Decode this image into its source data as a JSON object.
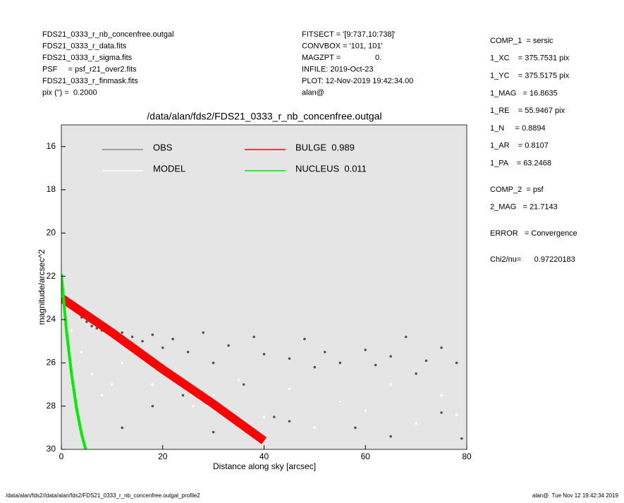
{
  "header": {
    "left": [
      "FDS21_0333_r_nb_concenfree.outgal",
      "FDS21_0333_r_data.fits",
      "FDS21_0333_r_sigma.fits",
      "PSF     = psf_r21_over2.fits",
      "FDS21_0333_r_finmask.fits",
      "pix (\") =  0.2000"
    ],
    "middle": [
      "FITSECT = '[9:737,10:738]'",
      "CONVBOX = '101, 101'",
      "MAGZPT =                0.",
      "INFILE: 2019-Oct-23",
      "PLOT: 12-Nov-2019 19:42:34.00",
      "alan@"
    ]
  },
  "fit_params": [
    [
      "COMP_1  = sersic",
      "1_XC    = 375.7531 pix",
      "1_YC    = 375.5175 pix",
      "1_MAG   = 16.8635",
      "1_RE    = 55.9467 pix",
      "1_N     = 0.8894",
      "1_AR    = 0.8107",
      "1_PA    = 63.2468"
    ],
    [
      "COMP_2  = psf",
      "2_MAG   = 21.7143"
    ],
    [
      "ERROR   = Convergence"
    ],
    [
      "Chi2/nu=      0.97220183"
    ]
  ],
  "footer": {
    "left": "/data/alan/fds2//data/alan/fds2/FDS21_0333_r_nb_concenfree.outgal_profile2",
    "right": "alan@  Tue Nov 12 19:42:34 2019"
  },
  "chart_data": {
    "type": "scatter",
    "title": "/data/alan/fds2/FDS21_0333_r_nb_concenfree.outgal",
    "x_label": "Distance along sky [arcsec]",
    "y_label": "magnitude/arcsec^2",
    "xlim": [
      0,
      80
    ],
    "xticks": [
      0,
      20,
      40,
      60,
      80
    ],
    "ylim": [
      30,
      15
    ],
    "yticks": [
      16,
      18,
      20,
      22,
      24,
      26,
      28,
      30
    ],
    "background": "#e5e5e5",
    "series": [
      {
        "name": "OBS",
        "color": "#555555",
        "label_color": "#999999",
        "mode": "markers",
        "x": [
          1,
          2,
          3,
          4,
          5,
          6,
          7,
          8,
          9,
          10,
          12,
          14,
          16,
          18,
          20,
          22,
          25,
          28,
          30,
          33,
          36,
          38,
          40,
          42,
          45,
          48,
          50,
          52,
          55,
          58,
          60,
          62,
          65,
          68,
          70,
          72,
          75,
          78,
          79,
          12,
          18,
          24,
          30,
          45,
          55,
          65,
          75
        ],
        "values": [
          23.0,
          23.3,
          23.6,
          23.9,
          24.1,
          24.3,
          24.4,
          24.5,
          24.6,
          24.7,
          24.6,
          24.8,
          25.0,
          24.7,
          25.3,
          24.9,
          25.5,
          24.6,
          26.0,
          25.2,
          27.0,
          24.8,
          25.6,
          28.5,
          25.8,
          24.9,
          26.2,
          25.5,
          26.0,
          29.0,
          25.4,
          26.1,
          25.7,
          24.8,
          26.5,
          25.9,
          25.3,
          26.0,
          29.5,
          29.0,
          28.0,
          27.5,
          29.2,
          28.7,
          27.8,
          29.4,
          28.3
        ]
      },
      {
        "name": "MODEL",
        "color": "#ffffff",
        "label_color": "#ffffff",
        "mode": "markers",
        "x": [
          0.5,
          1,
          2,
          4,
          6,
          8,
          10,
          12,
          15,
          18,
          22,
          26,
          30,
          35,
          40,
          45,
          50,
          55,
          60,
          65,
          70,
          75,
          78
        ],
        "values": [
          22.5,
          23.5,
          24.5,
          25.5,
          26.5,
          27.5,
          27.0,
          26.0,
          25.5,
          27.0,
          26.5,
          28.0,
          27.5,
          26.8,
          28.5,
          27.2,
          29.0,
          27.8,
          28.2,
          27.0,
          28.8,
          27.5,
          28.4
        ]
      },
      {
        "name": "BULGE  0.989",
        "color": "#ff0000",
        "label_color": "#ff0000",
        "mode": "band",
        "x": [
          0,
          10,
          20,
          30,
          40
        ],
        "values": [
          23.0,
          24.6,
          26.3,
          27.9,
          29.6
        ]
      },
      {
        "name": "NUCLEUS  0.011",
        "color": "#00ee00",
        "label_color": "#00ee00",
        "mode": "lines",
        "x": [
          0,
          0.5,
          1,
          2,
          3,
          4,
          4.8
        ],
        "values": [
          21.9,
          23.2,
          24.5,
          26.5,
          28.1,
          29.3,
          30
        ]
      }
    ]
  }
}
